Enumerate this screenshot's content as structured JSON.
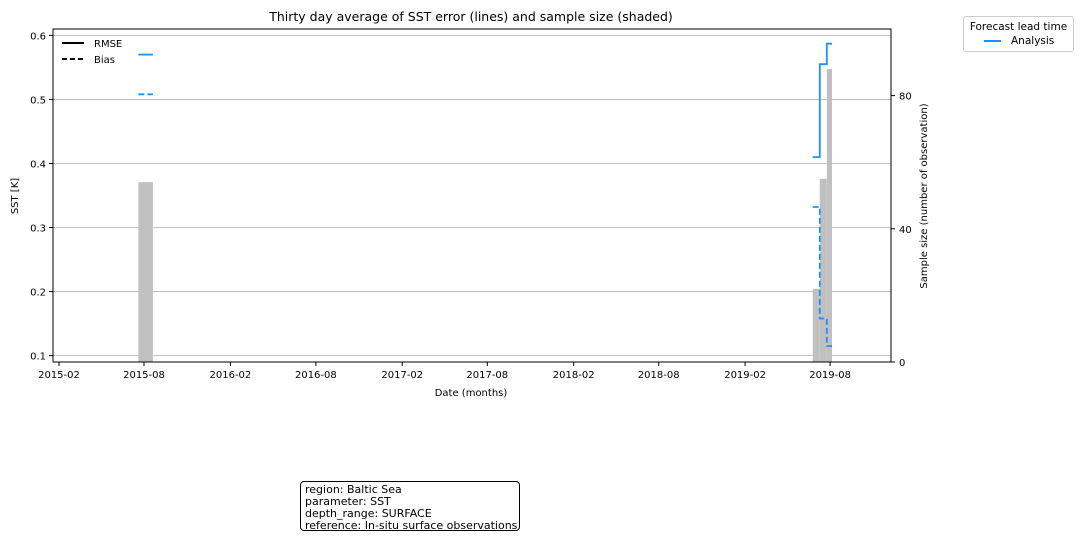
{
  "chart_data": {
    "type": "line",
    "title": "Thirty day average of SST error (lines) and sample size (shaded)",
    "xlabel": "Date (months)",
    "ylabel": "SST [K]",
    "y2label": "Sample size (number of observation)",
    "ylim": [
      0.09,
      0.61
    ],
    "y2lim": [
      0,
      100
    ],
    "yticks": [
      "0.1",
      "0.2",
      "0.3",
      "0.4",
      "0.5",
      "0.6"
    ],
    "y2ticks": [
      "0",
      "40",
      "80"
    ],
    "xticks": [
      "2015-02",
      "2015-08",
      "2016-02",
      "2016-08",
      "2017-02",
      "2017-08",
      "2018-02",
      "2018-08",
      "2019-02",
      "2019-08"
    ],
    "grid": "horizontal",
    "style_legend": {
      "placement": "top-left",
      "entries": [
        {
          "label": "RMSE",
          "style": "solid"
        },
        {
          "label": "Bias",
          "style": "dashed"
        }
      ]
    },
    "lead_time_legend": {
      "placement": "outside top-right",
      "title": "Forecast lead time",
      "entries": [
        {
          "label": "Analysis",
          "color": "#1e90ff"
        }
      ]
    },
    "series": [
      {
        "name": "RMSE",
        "lead_time": "Analysis",
        "style": "solid",
        "color": "#1e90ff",
        "segments": [
          [
            [
              "2015-07-20",
              0.57
            ],
            [
              "2015-08-20",
              0.57
            ]
          ],
          [
            [
              "2019-06-25",
              0.41
            ],
            [
              "2019-07-10",
              0.41
            ],
            [
              "2019-07-10",
              0.555
            ],
            [
              "2019-07-25",
              0.555
            ],
            [
              "2019-07-25",
              0.587
            ],
            [
              "2019-08-05",
              0.587
            ]
          ]
        ]
      },
      {
        "name": "Bias",
        "lead_time": "Analysis",
        "style": "dashed",
        "color": "#1e90ff",
        "segments": [
          [
            [
              "2015-07-20",
              0.508
            ],
            [
              "2015-08-20",
              0.508
            ]
          ],
          [
            [
              "2019-06-25",
              0.332
            ],
            [
              "2019-07-10",
              0.332
            ],
            [
              "2019-07-10",
              0.158
            ],
            [
              "2019-07-25",
              0.158
            ],
            [
              "2019-07-25",
              0.115
            ],
            [
              "2019-08-05",
              0.115
            ]
          ]
        ]
      }
    ],
    "sample_size": {
      "color": "#c0c0c0",
      "bars": [
        {
          "start": "2015-07-20",
          "end": "2015-08-20",
          "value": 54
        },
        {
          "start": "2019-06-25",
          "end": "2019-07-10",
          "value": 22
        },
        {
          "start": "2019-07-10",
          "end": "2019-07-25",
          "value": 55
        },
        {
          "start": "2019-07-25",
          "end": "2019-08-05",
          "value": 88
        }
      ]
    }
  },
  "info": {
    "region": "region: Baltic Sea",
    "parameter": "parameter: SST",
    "depth_range": "depth_range: SURFACE",
    "reference": "reference: In-situ surface observations"
  }
}
